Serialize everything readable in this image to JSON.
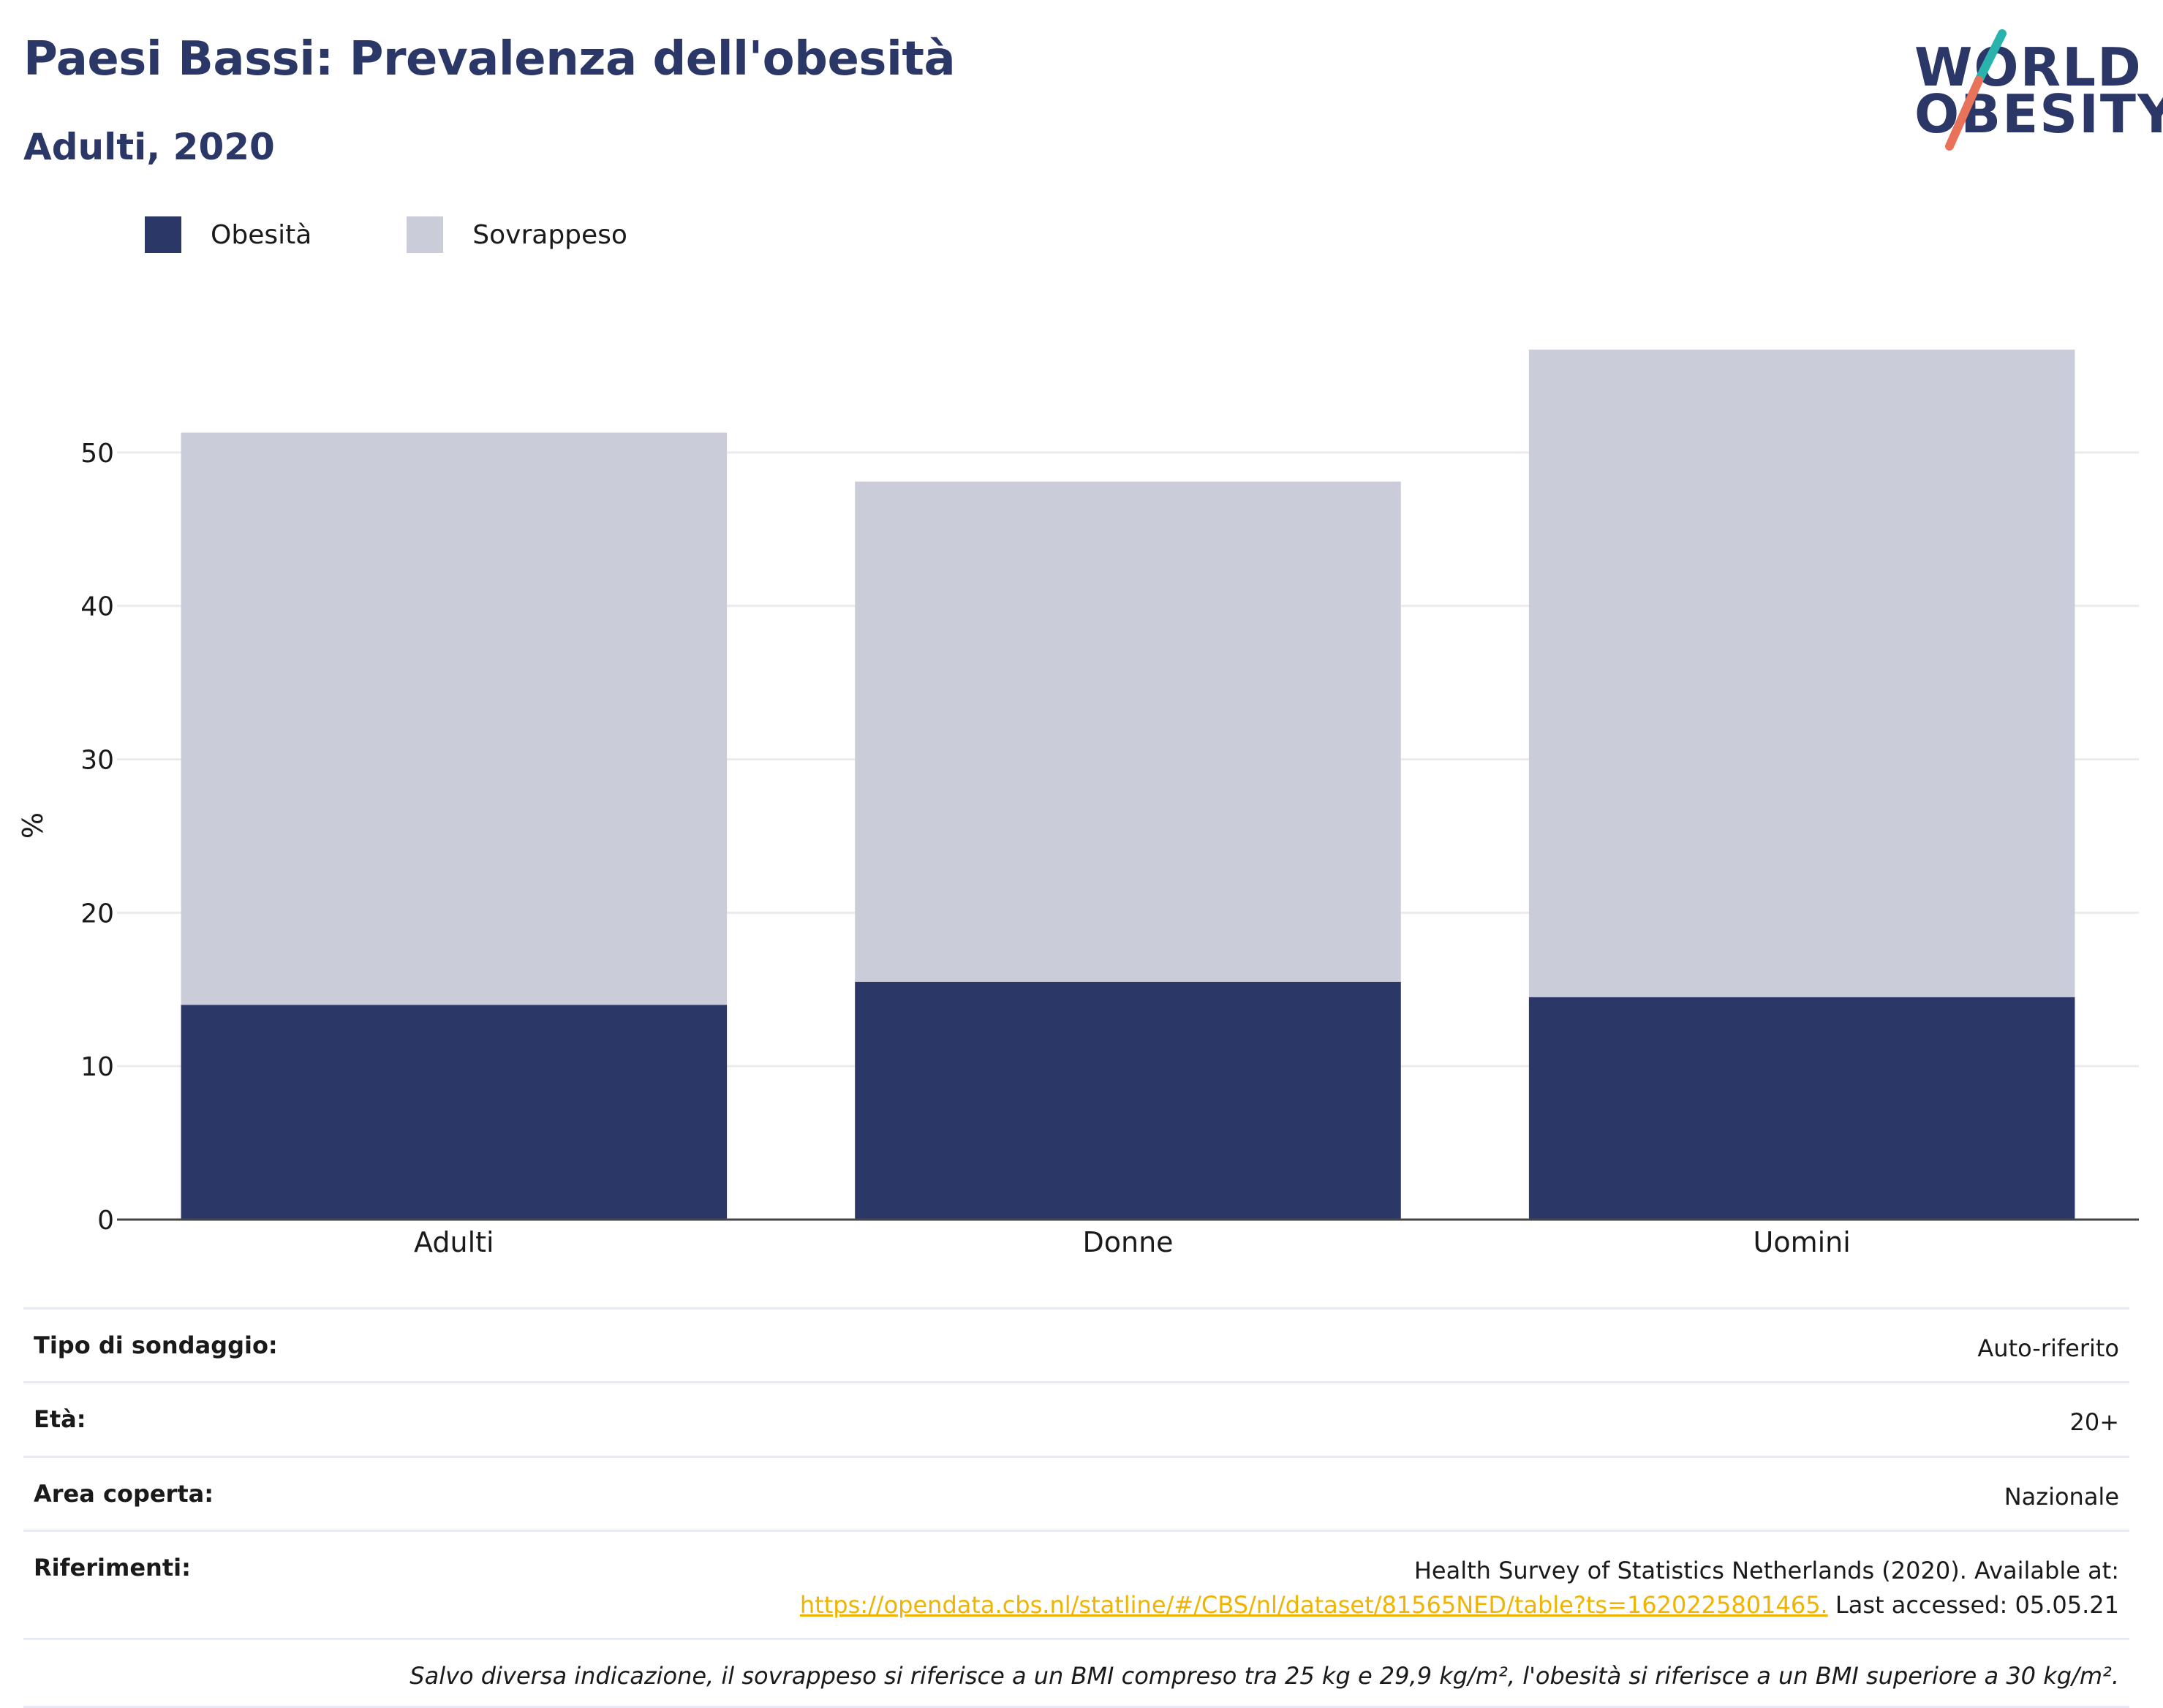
{
  "header": {
    "title": "Paesi Bassi: Prevalenza dell'obesità",
    "subtitle": "Adulti, 2020"
  },
  "logo": {
    "line1": "WORLD",
    "line2": "OBESITY",
    "colors": {
      "navy": "#2b3766",
      "teal": "#2ab3ad",
      "coral": "#e8735a"
    }
  },
  "legend": [
    {
      "label": "Obesità",
      "color": "#2b3766"
    },
    {
      "label": "Sovrappeso",
      "color": "#cacdd9"
    }
  ],
  "chart_data": {
    "type": "bar",
    "stacked": true,
    "categories": [
      "Adulti",
      "Donne",
      "Uomini"
    ],
    "series": [
      {
        "name": "Obesità",
        "color": "#2b3766",
        "values": [
          14.0,
          15.5,
          14.5
        ]
      },
      {
        "name": "Sovrappeso",
        "color": "#cacdd9",
        "values": [
          37.3,
          32.6,
          42.2
        ]
      }
    ],
    "totals": [
      51.3,
      48.1,
      56.7
    ],
    "ylabel": "%",
    "ylim": [
      0,
      59
    ],
    "yticks": [
      "0",
      "10",
      "20",
      "30",
      "40",
      "50"
    ],
    "grid": true,
    "legend_position": "top-left"
  },
  "info": {
    "survey_type": {
      "label": "Tipo di sondaggio:",
      "value": "Auto-riferito"
    },
    "age": {
      "label": "Età:",
      "value": "20+"
    },
    "area": {
      "label": "Area coperta:",
      "value": "Nazionale"
    },
    "references": {
      "label": "Riferimenti:",
      "line1": "Health Survey of Statistics Netherlands (2020). Available at:",
      "link": "https://opendata.cbs.nl/statline/#/CBS/nl/dataset/81565NED/table?ts=1620225801465.",
      "accessed": "Last accessed: 05.05.21"
    },
    "note": "Salvo diversa indicazione, il sovrappeso si riferisce a un BMI compreso tra 25 kg e 29,9 kg/m², l'obesità si riferisce a un BMI superiore a 30 kg/m²."
  }
}
